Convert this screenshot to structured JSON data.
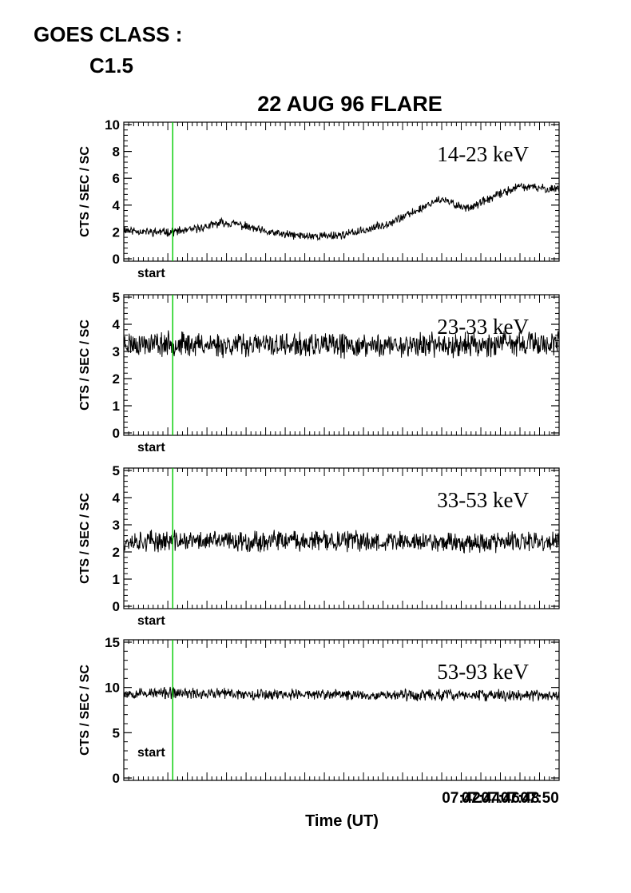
{
  "header": {
    "line1": "GOES CLASS :",
    "line2": "C1.5"
  },
  "chart_data": {
    "type": "line",
    "title": "22 AUG 96 FLARE",
    "xlabel": "Time (UT)",
    "x_ticks": [
      "07:42",
      "07:44",
      "07:46",
      "07:48",
      "07:50"
    ],
    "x_range_min": [
      7.5,
      52
    ],
    "start_marker_min": 12.5,
    "start_label": "start",
    "line_color": "#000000",
    "marker_color": "#00cc00",
    "panels": [
      {
        "band": "14-23 keV",
        "ylabel": "CTS / SEC / SC",
        "ylim": [
          0,
          10
        ],
        "yticks": [
          0,
          2,
          4,
          6,
          8,
          10
        ],
        "series": [
          {
            "t": 7.5,
            "v": 2.2
          },
          {
            "t": 8.5,
            "v": 2.1
          },
          {
            "t": 10,
            "v": 2.0
          },
          {
            "t": 12,
            "v": 2.0
          },
          {
            "t": 14,
            "v": 2.1
          },
          {
            "t": 16,
            "v": 2.4
          },
          {
            "t": 17.5,
            "v": 2.7
          },
          {
            "t": 19,
            "v": 2.6
          },
          {
            "t": 20.5,
            "v": 2.3
          },
          {
            "t": 22,
            "v": 2.0
          },
          {
            "t": 24,
            "v": 1.8
          },
          {
            "t": 26,
            "v": 1.7
          },
          {
            "t": 28,
            "v": 1.7
          },
          {
            "t": 30,
            "v": 1.8
          },
          {
            "t": 32,
            "v": 2.1
          },
          {
            "t": 34,
            "v": 2.5
          },
          {
            "t": 36,
            "v": 3.1
          },
          {
            "t": 37.5,
            "v": 3.6
          },
          {
            "t": 38.5,
            "v": 4.0
          },
          {
            "t": 39.5,
            "v": 4.4
          },
          {
            "t": 40.5,
            "v": 4.3
          },
          {
            "t": 41.5,
            "v": 4.0
          },
          {
            "t": 42.5,
            "v": 3.8
          },
          {
            "t": 43.5,
            "v": 4.0
          },
          {
            "t": 45,
            "v": 4.5
          },
          {
            "t": 46.5,
            "v": 5.0
          },
          {
            "t": 48,
            "v": 5.4
          },
          {
            "t": 49.5,
            "v": 5.3
          },
          {
            "t": 51,
            "v": 5.2
          },
          {
            "t": 52,
            "v": 5.3
          }
        ],
        "noise": 0.25,
        "seed": 11
      },
      {
        "band": "23-33 keV",
        "ylabel": "CTS / SEC / SC",
        "ylim": [
          0,
          5
        ],
        "yticks": [
          0,
          1,
          2,
          3,
          4,
          5
        ],
        "series": [
          {
            "t": 7.5,
            "v": 3.3
          },
          {
            "t": 30,
            "v": 3.2
          },
          {
            "t": 52,
            "v": 3.3
          }
        ],
        "noise": 0.35,
        "seed": 23
      },
      {
        "band": "33-53 keV",
        "ylabel": "CTS / SEC / SC",
        "ylim": [
          0,
          5
        ],
        "yticks": [
          0,
          1,
          2,
          3,
          4,
          5
        ],
        "series": [
          {
            "t": 7.5,
            "v": 2.4
          },
          {
            "t": 30,
            "v": 2.4
          },
          {
            "t": 52,
            "v": 2.35
          }
        ],
        "noise": 0.3,
        "seed": 37
      },
      {
        "band": "53-93 keV",
        "ylabel": "CTS / SEC / SC",
        "ylim": [
          0,
          15
        ],
        "yticks": [
          0,
          5,
          10,
          15
        ],
        "series": [
          {
            "t": 7.5,
            "v": 9.4
          },
          {
            "t": 30,
            "v": 9.2
          },
          {
            "t": 52,
            "v": 9.1
          }
        ],
        "noise": 0.5,
        "seed": 53
      }
    ]
  }
}
